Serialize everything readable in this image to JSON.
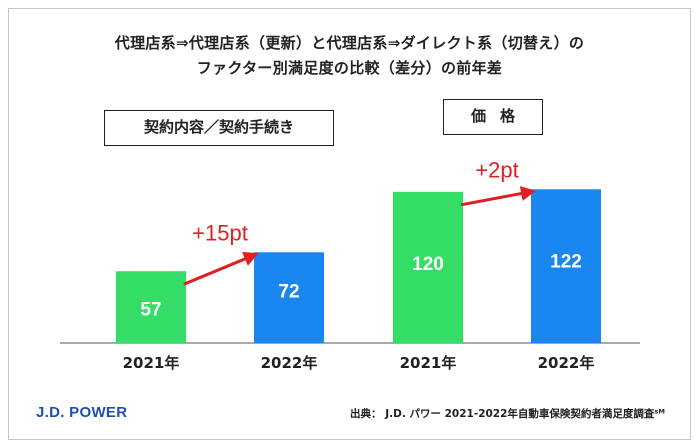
{
  "header": {
    "title_line1": "代理店系⇒代理店系（更新）と代理店系⇒ダイレクト系（切替え）の",
    "title_line2": "ファクター別満足度の比較（差分）の前年差"
  },
  "colors": {
    "bar_2021": "#33dd66",
    "bar_2022": "#1a86f0",
    "arrow": "#e02020"
  },
  "chart_data": [
    {
      "type": "bar",
      "panel_label": "契約内容／契約手続き",
      "categories": [
        "2021年",
        "2022年"
      ],
      "values": [
        57,
        72
      ],
      "difference_label": "+15pt"
    },
    {
      "type": "bar",
      "panel_label": "価格",
      "categories": [
        "2021年",
        "2022年"
      ],
      "values": [
        120,
        122
      ],
      "difference_label": "+2pt"
    }
  ],
  "footer": {
    "logo": "J.D. POWER",
    "source": "出典： J.D. パワー 2021-2022年自動車保険契約者満足度調査ˢᴹ"
  }
}
